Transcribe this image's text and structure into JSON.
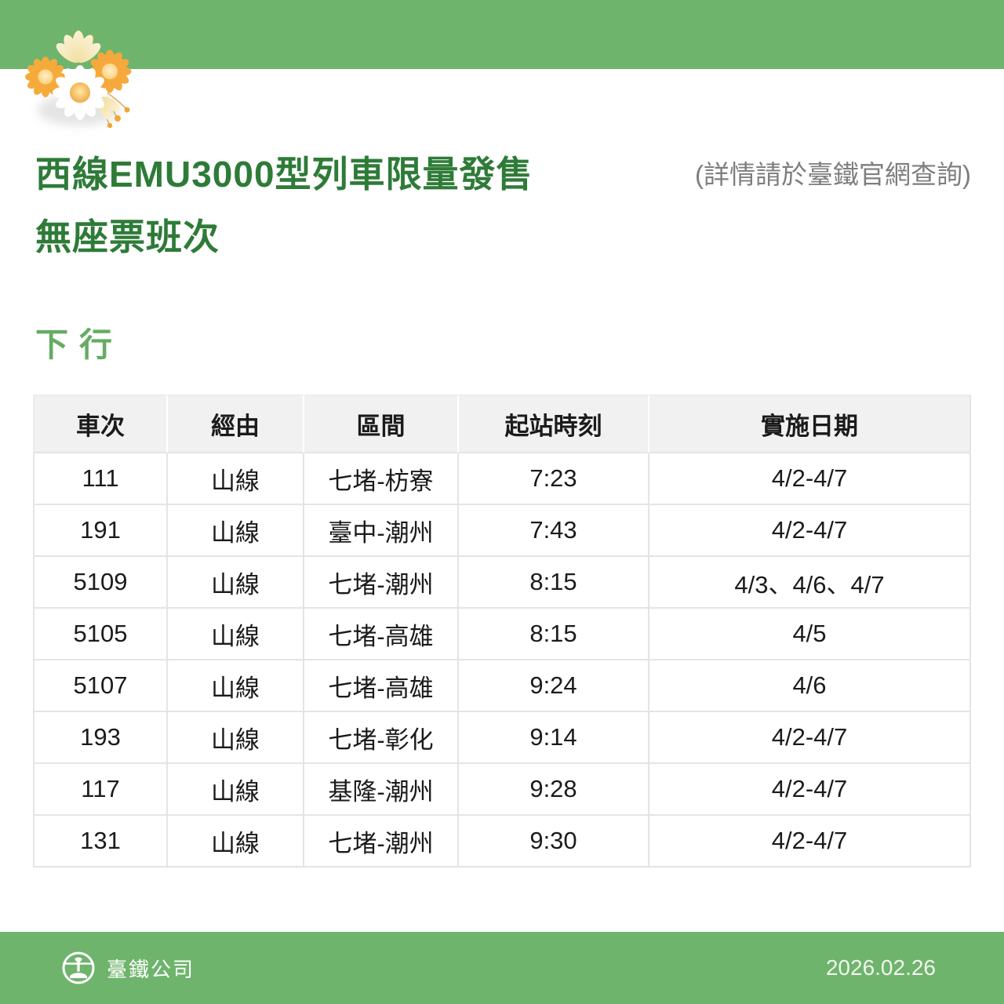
{
  "header": {
    "title_line1": "西線EMU3000型列車限量發售",
    "title_line2": "無座票班次",
    "note": "(詳情請於臺鐵官網查詢)"
  },
  "section": {
    "label": "下行"
  },
  "table": {
    "headers": [
      "車次",
      "經由",
      "區間",
      "起站時刻",
      "實施日期"
    ],
    "rows": [
      [
        "111",
        "山線",
        "七堵-枋寮",
        "7:23",
        "4/2-4/7"
      ],
      [
        "191",
        "山線",
        "臺中-潮州",
        "7:43",
        "4/2-4/7"
      ],
      [
        "5109",
        "山線",
        "七堵-潮州",
        "8:15",
        "4/3、4/6、4/7"
      ],
      [
        "5105",
        "山線",
        "七堵-高雄",
        "8:15",
        "4/5"
      ],
      [
        "5107",
        "山線",
        "七堵-高雄",
        "9:24",
        "4/6"
      ],
      [
        "193",
        "山線",
        "七堵-彰化",
        "9:14",
        "4/2-4/7"
      ],
      [
        "117",
        "山線",
        "基隆-潮州",
        "9:28",
        "4/2-4/7"
      ],
      [
        "131",
        "山線",
        "七堵-潮州",
        "9:30",
        "4/2-4/7"
      ]
    ]
  },
  "footer": {
    "company": "臺鐵公司",
    "date": "2026.02.26"
  },
  "icons": {
    "flowers": "daisy-flowers-decoration",
    "logo": "taiwan-railway-emblem"
  },
  "colors": {
    "brand_green": "#6EB46C",
    "title_green": "#2E7B38",
    "section_green": "#66AB64",
    "note_gray": "#7E7E7E",
    "table_header_bg": "#F1F1F1",
    "table_border": "#E4E4E4",
    "text": "#1B1B1B",
    "footer_text": "#FFFFFF"
  }
}
